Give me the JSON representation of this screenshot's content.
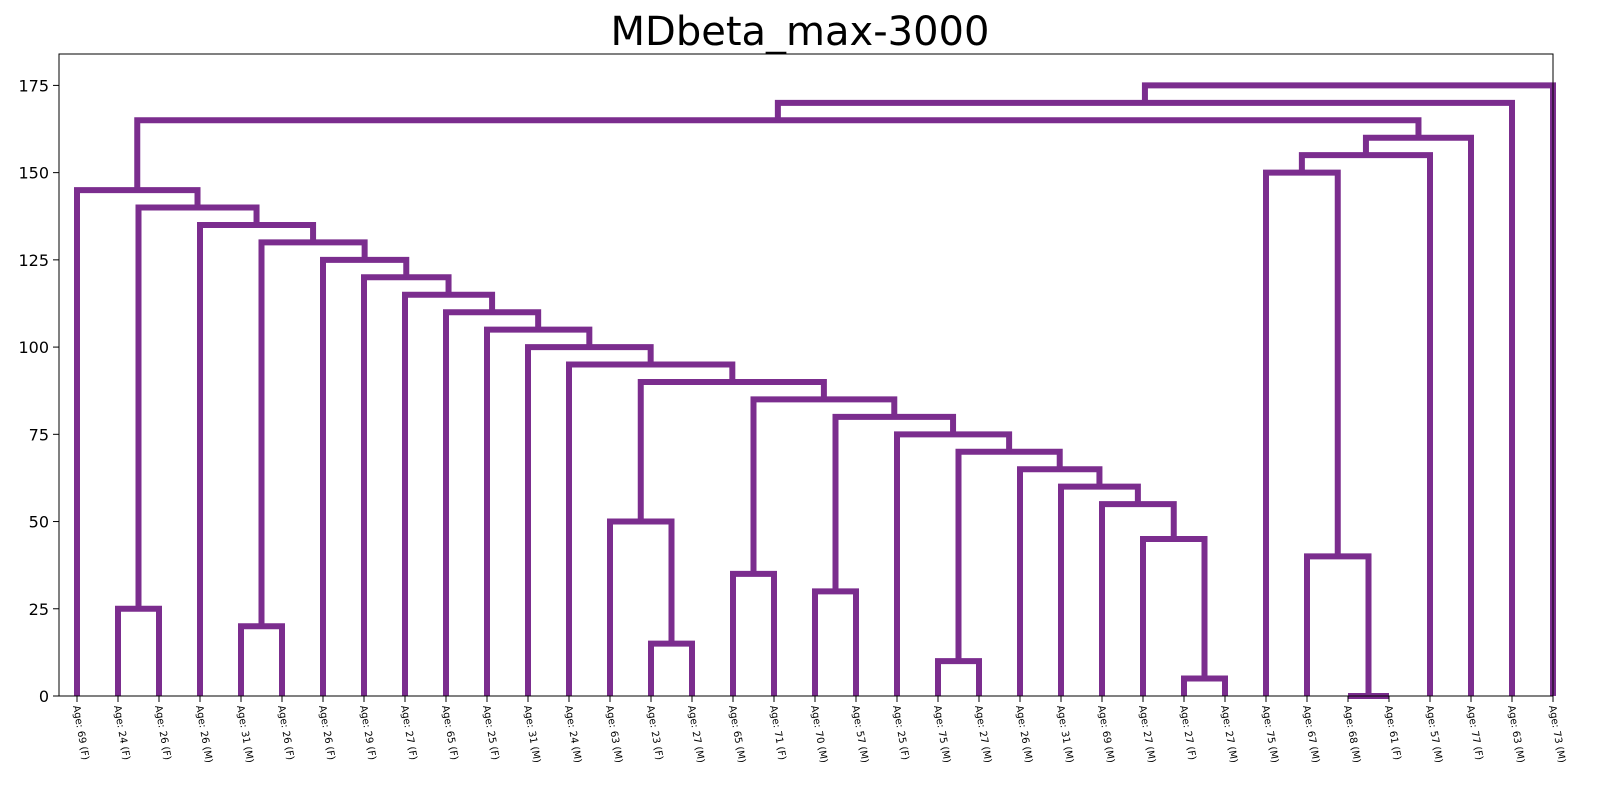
{
  "chart_data": {
    "type": "dendrogram",
    "title": "MDbeta_max-3000",
    "xlabel": "",
    "ylabel": "",
    "ylim": [
      0,
      184
    ],
    "yticks": [
      0,
      25,
      50,
      75,
      100,
      125,
      150,
      175
    ],
    "grid": false,
    "link_color": "#7B2D8E",
    "leaves": [
      "Age: 69 (F)",
      "Age: 24 (F)",
      "Age: 26 (F)",
      "Age: 26 (M)",
      "Age: 31 (M)",
      "Age: 26 (F)",
      "Age: 26 (F)",
      "Age: 29 (F)",
      "Age: 27 (F)",
      "Age: 65 (F)",
      "Age: 25 (F)",
      "Age: 31 (M)",
      "Age: 24 (M)",
      "Age: 63 (M)",
      "Age: 23 (F)",
      "Age: 27 (M)",
      "Age: 65 (M)",
      "Age: 71 (F)",
      "Age: 70 (M)",
      "Age: 57 (M)",
      "Age: 25 (F)",
      "Age: 75 (M)",
      "Age: 27 (M)",
      "Age: 26 (M)",
      "Age: 31 (M)",
      "Age: 69 (M)",
      "Age: 27 (M)",
      "Age: 27 (F)",
      "Age: 27 (M)",
      "Age: 75 (M)",
      "Age: 67 (M)",
      "Age: 68 (M)",
      "Age: 61 (F)",
      "Age: 57 (M)",
      "Age: 77 (F)",
      "Age: 63 (M)",
      "Age: 73 (M)"
    ],
    "merges": [
      {
        "a": 1,
        "b": 2,
        "height": 25
      },
      {
        "a": 4,
        "b": 5,
        "height": 20
      },
      {
        "a": 14,
        "b": 15,
        "height": 15
      },
      {
        "a": 13,
        "b": "n2",
        "height": 50
      },
      {
        "a": 16,
        "b": 17,
        "height": 35
      },
      {
        "a": 18,
        "b": 19,
        "height": 30
      },
      {
        "a": 21,
        "b": 22,
        "height": 10
      },
      {
        "a": 27,
        "b": 28,
        "height": 5
      },
      {
        "a": 26,
        "b": "n7",
        "height": 45
      },
      {
        "a": 25,
        "b": "n8",
        "height": 55
      },
      {
        "a": 24,
        "b": "n9",
        "height": 60
      },
      {
        "a": 23,
        "b": "n10",
        "height": 65
      },
      {
        "a": "n6",
        "b": "n11",
        "height": 70
      },
      {
        "a": 20,
        "b": "n12",
        "height": 75
      },
      {
        "a": "n5",
        "b": "n13",
        "height": 80
      },
      {
        "a": "n4",
        "b": "n14",
        "height": 85
      },
      {
        "a": "n3",
        "b": "n15",
        "height": 90
      },
      {
        "a": 12,
        "b": "n16",
        "height": 95
      },
      {
        "a": 11,
        "b": "n17",
        "height": 100
      },
      {
        "a": 10,
        "b": "n18",
        "height": 105
      },
      {
        "a": 9,
        "b": "n19",
        "height": 110
      },
      {
        "a": 8,
        "b": "n20",
        "height": 115
      },
      {
        "a": 7,
        "b": "n21",
        "height": 120
      },
      {
        "a": 6,
        "b": "n22",
        "height": 125
      },
      {
        "a": "n1",
        "b": "n23",
        "height": 130
      },
      {
        "a": 3,
        "b": "n24",
        "height": 135
      },
      {
        "a": "n0",
        "b": "n25",
        "height": 140
      },
      {
        "a": 0,
        "b": "n26",
        "height": 145
      },
      {
        "a": 31,
        "b": 32,
        "height": 0
      },
      {
        "a": 30,
        "b": "n28",
        "height": 40
      },
      {
        "a": 29,
        "b": "n29",
        "height": 150
      },
      {
        "a": "n30",
        "b": 33,
        "height": 155
      },
      {
        "a": "n31",
        "b": 34,
        "height": 160
      },
      {
        "a": "n27",
        "b": "n32",
        "height": 165
      },
      {
        "a": "n33",
        "b": 35,
        "height": 170
      },
      {
        "a": "n34",
        "b": 36,
        "height": 175
      }
    ]
  }
}
